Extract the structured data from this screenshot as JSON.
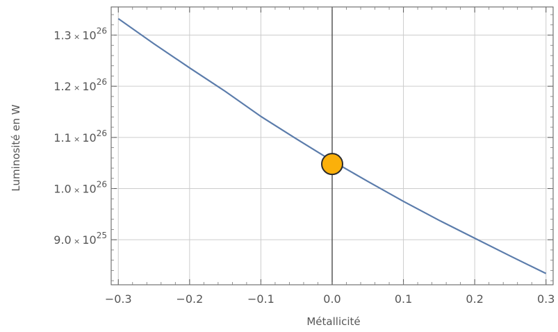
{
  "chart_data": {
    "type": "line",
    "title": "",
    "xlabel": "Métallicité",
    "ylabel": "Luminosité en W",
    "xlim": [
      -0.31,
      0.31
    ],
    "ylim": [
      8.12e+25,
      1.355e+26
    ],
    "grid": true,
    "x_ticks": [
      {
        "value": -0.3,
        "label": "−0.3"
      },
      {
        "value": -0.2,
        "label": "−0.2"
      },
      {
        "value": -0.1,
        "label": "−0.1"
      },
      {
        "value": 0.0,
        "label": "0.0"
      },
      {
        "value": 0.1,
        "label": "0.1"
      },
      {
        "value": 0.2,
        "label": "0.2"
      },
      {
        "value": 0.3,
        "label": "0.3"
      }
    ],
    "y_ticks": [
      {
        "value": 9e+25,
        "mantissa": "9.0",
        "times": "×",
        "base": "10",
        "exponent": "25"
      },
      {
        "value": 1e+26,
        "mantissa": "1.0",
        "times": "×",
        "base": "10",
        "exponent": "26"
      },
      {
        "value": 1.1e+26,
        "mantissa": "1.1",
        "times": "×",
        "base": "10",
        "exponent": "26"
      },
      {
        "value": 1.2e+26,
        "mantissa": "1.2",
        "times": "×",
        "base": "10",
        "exponent": "26"
      },
      {
        "value": 1.3e+26,
        "mantissa": "1.3",
        "times": "×",
        "base": "10",
        "exponent": "26"
      }
    ],
    "series": [
      {
        "color": "#5b7cab",
        "x": [
          -0.3,
          -0.25,
          -0.2,
          -0.15,
          -0.1,
          -0.05,
          0.0,
          0.05,
          0.1,
          0.15,
          0.2,
          0.25,
          0.3
        ],
        "y": [
          1.332e+26,
          1.283e+26,
          1.236e+26,
          1.19e+26,
          1.141e+26,
          1.097e+26,
          1.054e+26,
          1.014e+26,
          9.75e+25,
          9.38e+25,
          9.03e+25,
          8.68e+25,
          8.34e+25
        ]
      }
    ],
    "highlight_point": {
      "x": 0.0,
      "y": 1.048e+26,
      "color": "#fbb00a",
      "stroke": "#2b2b2b"
    },
    "zero_line_color": "#555555"
  }
}
